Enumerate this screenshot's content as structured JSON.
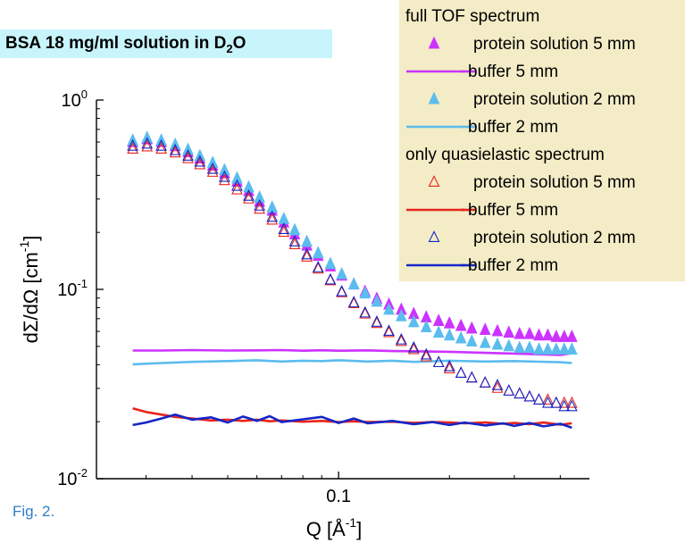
{
  "figure": {
    "caption": "Fig. 2.",
    "title": {
      "main": "BSA 18 mg/ml solution in D",
      "sub": "2",
      "tail": "O"
    }
  },
  "colors": {
    "magenta": "#cc33ff",
    "lightblue": "#5bbcee",
    "red": "#e8241c",
    "darkblue": "#1426c8",
    "title_bg": "#c8f4fb",
    "legend_bg": "#f3ecc6",
    "caption": "#2f7fc4"
  },
  "chart_data": {
    "type": "scatter",
    "x_scale": "log",
    "y_scale": "log",
    "xlim": [
      0.022,
      0.48
    ],
    "ylim": [
      0.01,
      1
    ],
    "xlabel": {
      "base": "Q [Å",
      "sup": "-1",
      "tail": "]"
    },
    "ylabel": {
      "base": "dΣ/dΩ [cm",
      "sup": "-1",
      "tail": "]"
    },
    "x_ticks": [
      {
        "value": 0.1,
        "label": "0.1"
      }
    ],
    "y_ticks": [
      {
        "value": 1,
        "base": "10",
        "exp": "0"
      },
      {
        "value": 0.1,
        "base": "10",
        "exp": "-1"
      },
      {
        "value": 0.01,
        "base": "10",
        "exp": "-2"
      }
    ],
    "legend": [
      {
        "kind": "header",
        "label": "full TOF spectrum"
      },
      {
        "kind": "series",
        "series": 0,
        "label": "protein solution 5 mm"
      },
      {
        "kind": "series",
        "series": 1,
        "label": "buffer 5 mm"
      },
      {
        "kind": "series",
        "series": 2,
        "label": "protein solution 2 mm"
      },
      {
        "kind": "series",
        "series": 3,
        "label": "buffer 2 mm"
      },
      {
        "kind": "header",
        "label": "only quasielastic spectrum"
      },
      {
        "kind": "series",
        "series": 4,
        "label": "protein solution 5 mm"
      },
      {
        "kind": "series",
        "series": 5,
        "label": "buffer 5 mm"
      },
      {
        "kind": "series",
        "series": 6,
        "label": "protein solution 2 mm"
      },
      {
        "kind": "series",
        "series": 7,
        "label": "buffer 2 mm"
      }
    ],
    "series": [
      {
        "name": "protein solution 5 mm",
        "group": "full TOF spectrum",
        "style": "filled-triangle",
        "color": "#cc33ff",
        "x": [
          0.0276,
          0.0302,
          0.033,
          0.036,
          0.039,
          0.042,
          0.0455,
          0.049,
          0.053,
          0.057,
          0.061,
          0.066,
          0.071,
          0.076,
          0.082,
          0.088,
          0.095,
          0.102,
          0.11,
          0.118,
          0.127,
          0.137,
          0.148,
          0.16,
          0.173,
          0.187,
          0.2,
          0.215,
          0.23,
          0.25,
          0.27,
          0.29,
          0.31,
          0.33,
          0.35,
          0.37,
          0.39,
          0.41,
          0.43
        ],
        "y": [
          0.6,
          0.62,
          0.6,
          0.57,
          0.53,
          0.49,
          0.45,
          0.41,
          0.37,
          0.33,
          0.29,
          0.26,
          0.225,
          0.195,
          0.17,
          0.15,
          0.132,
          0.118,
          0.106,
          0.097,
          0.089,
          0.083,
          0.078,
          0.074,
          0.071,
          0.068,
          0.066,
          0.064,
          0.062,
          0.061,
          0.06,
          0.059,
          0.058,
          0.058,
          0.057,
          0.057,
          0.056,
          0.056,
          0.056
        ]
      },
      {
        "name": "buffer 5 mm",
        "group": "full TOF spectrum",
        "style": "line",
        "color": "#cc33ff",
        "x": [
          0.0276,
          0.033,
          0.04,
          0.05,
          0.06,
          0.07,
          0.08,
          0.09,
          0.1,
          0.12,
          0.14,
          0.16,
          0.2,
          0.25,
          0.3,
          0.35,
          0.4,
          0.43
        ],
        "y": [
          0.0475,
          0.0475,
          0.0478,
          0.0475,
          0.0476,
          0.0478,
          0.0474,
          0.0477,
          0.0474,
          0.0476,
          0.0472,
          0.0471,
          0.0468,
          0.0462,
          0.0458,
          0.0454,
          0.045,
          0.046
        ]
      },
      {
        "name": "protein solution 2 mm",
        "group": "full TOF spectrum",
        "style": "filled-triangle",
        "color": "#5bbcee",
        "x": [
          0.0276,
          0.0302,
          0.033,
          0.036,
          0.039,
          0.042,
          0.0455,
          0.049,
          0.053,
          0.057,
          0.061,
          0.066,
          0.071,
          0.076,
          0.082,
          0.088,
          0.095,
          0.102,
          0.11,
          0.118,
          0.127,
          0.137,
          0.148,
          0.16,
          0.173,
          0.187,
          0.2,
          0.215,
          0.23,
          0.25,
          0.27,
          0.29,
          0.31,
          0.33,
          0.35,
          0.37,
          0.39,
          0.41,
          0.43
        ],
        "y": [
          0.61,
          0.63,
          0.61,
          0.58,
          0.545,
          0.505,
          0.465,
          0.425,
          0.385,
          0.345,
          0.305,
          0.27,
          0.235,
          0.205,
          0.178,
          0.155,
          0.136,
          0.12,
          0.106,
          0.095,
          0.086,
          0.078,
          0.072,
          0.067,
          0.063,
          0.059,
          0.057,
          0.055,
          0.053,
          0.052,
          0.051,
          0.05,
          0.049,
          0.049,
          0.048,
          0.048,
          0.048,
          0.048,
          0.048
        ]
      },
      {
        "name": "buffer 2 mm",
        "group": "full TOF spectrum",
        "style": "line",
        "color": "#5bbcee",
        "x": [
          0.0276,
          0.033,
          0.04,
          0.05,
          0.06,
          0.07,
          0.08,
          0.09,
          0.1,
          0.12,
          0.14,
          0.16,
          0.2,
          0.25,
          0.3,
          0.35,
          0.4,
          0.43
        ],
        "y": [
          0.0402,
          0.0408,
          0.0414,
          0.0418,
          0.0422,
          0.0416,
          0.042,
          0.0418,
          0.0422,
          0.0416,
          0.042,
          0.0414,
          0.042,
          0.0416,
          0.0418,
          0.0415,
          0.0412,
          0.0408
        ]
      },
      {
        "name": "protein solution 5 mm",
        "group": "only quasielastic spectrum",
        "style": "open-triangle",
        "color": "#e8241c",
        "x": [
          0.0276,
          0.0302,
          0.033,
          0.036,
          0.039,
          0.042,
          0.0455,
          0.049,
          0.053,
          0.057,
          0.061,
          0.066,
          0.071,
          0.076,
          0.082,
          0.088,
          0.095,
          0.102,
          0.11,
          0.118,
          0.127,
          0.137,
          0.148,
          0.16,
          0.173,
          0.187,
          0.2,
          0.215,
          0.23,
          0.25,
          0.27,
          0.29,
          0.31,
          0.33,
          0.35,
          0.37,
          0.39,
          0.41,
          0.43
        ],
        "y": [
          0.55,
          0.565,
          0.55,
          0.525,
          0.49,
          0.455,
          0.415,
          0.375,
          0.335,
          0.3,
          0.265,
          0.232,
          0.2,
          0.172,
          0.148,
          0.128,
          0.111,
          0.096,
          0.084,
          0.074,
          0.066,
          0.059,
          0.053,
          0.048,
          0.044,
          0.041,
          0.038,
          0.036,
          0.034,
          0.032,
          0.03,
          0.029,
          0.028,
          0.027,
          0.026,
          0.026,
          0.025,
          0.025,
          0.025
        ]
      },
      {
        "name": "buffer 5 mm",
        "group": "only quasielastic spectrum",
        "style": "line",
        "color": "#e8241c",
        "x": [
          0.0276,
          0.03,
          0.033,
          0.036,
          0.04,
          0.045,
          0.05,
          0.055,
          0.06,
          0.065,
          0.07,
          0.08,
          0.09,
          0.1,
          0.11,
          0.12,
          0.14,
          0.16,
          0.18,
          0.2,
          0.22,
          0.25,
          0.28,
          0.3,
          0.33,
          0.36,
          0.4,
          0.43
        ],
        "y": [
          0.0235,
          0.0225,
          0.0218,
          0.0212,
          0.0208,
          0.0203,
          0.0205,
          0.0202,
          0.0205,
          0.0201,
          0.0203,
          0.02,
          0.0202,
          0.0199,
          0.0201,
          0.0199,
          0.02,
          0.0197,
          0.0199,
          0.0198,
          0.0196,
          0.0198,
          0.0195,
          0.0197,
          0.0194,
          0.0198,
          0.0193,
          0.0196
        ]
      },
      {
        "name": "protein solution 2 mm",
        "group": "only quasielastic spectrum",
        "style": "open-triangle",
        "color": "#1426c8",
        "x": [
          0.0276,
          0.0302,
          0.033,
          0.036,
          0.039,
          0.042,
          0.0455,
          0.049,
          0.053,
          0.057,
          0.061,
          0.066,
          0.071,
          0.076,
          0.082,
          0.088,
          0.095,
          0.102,
          0.11,
          0.118,
          0.127,
          0.137,
          0.148,
          0.16,
          0.173,
          0.187,
          0.2,
          0.215,
          0.23,
          0.25,
          0.27,
          0.29,
          0.31,
          0.33,
          0.35,
          0.37,
          0.39,
          0.41,
          0.43
        ],
        "y": [
          0.57,
          0.585,
          0.57,
          0.54,
          0.505,
          0.47,
          0.43,
          0.39,
          0.35,
          0.31,
          0.275,
          0.24,
          0.207,
          0.178,
          0.152,
          0.13,
          0.112,
          0.097,
          0.085,
          0.075,
          0.067,
          0.06,
          0.054,
          0.049,
          0.045,
          0.041,
          0.039,
          0.036,
          0.034,
          0.032,
          0.031,
          0.029,
          0.028,
          0.027,
          0.026,
          0.025,
          0.025,
          0.024,
          0.024
        ]
      },
      {
        "name": "buffer 2 mm",
        "group": "only quasielastic spectrum",
        "style": "line",
        "color": "#1426c8",
        "x": [
          0.0276,
          0.03,
          0.033,
          0.036,
          0.04,
          0.045,
          0.05,
          0.055,
          0.06,
          0.065,
          0.07,
          0.08,
          0.09,
          0.1,
          0.11,
          0.12,
          0.14,
          0.16,
          0.18,
          0.2,
          0.22,
          0.25,
          0.28,
          0.3,
          0.33,
          0.36,
          0.4,
          0.43
        ],
        "y": [
          0.0192,
          0.0198,
          0.0208,
          0.0218,
          0.0205,
          0.0211,
          0.0198,
          0.0213,
          0.0202,
          0.0214,
          0.0199,
          0.0206,
          0.0212,
          0.0197,
          0.0208,
          0.0196,
          0.0202,
          0.0194,
          0.0199,
          0.0192,
          0.0198,
          0.0191,
          0.0196,
          0.019,
          0.0197,
          0.0189,
          0.0195,
          0.0186
        ]
      }
    ]
  }
}
